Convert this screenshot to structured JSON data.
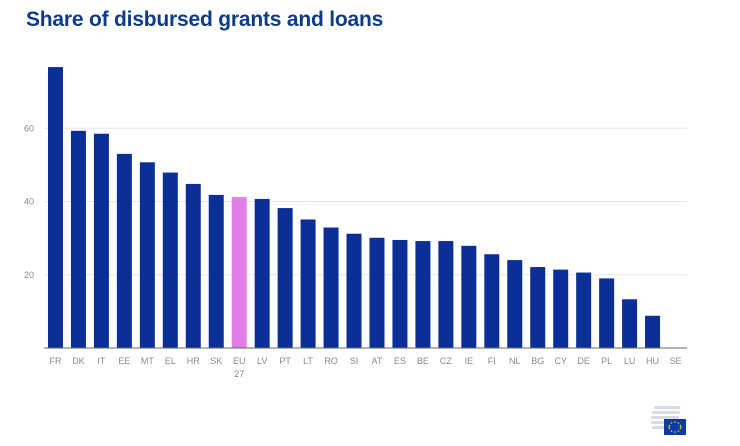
{
  "chart_data": {
    "type": "bar",
    "title": "Share of disbursed grants and loans",
    "categories": [
      "FR",
      "DK",
      "IT",
      "EE",
      "MT",
      "EL",
      "HR",
      "SK",
      "EU 27",
      "LV",
      "PT",
      "LT",
      "RO",
      "SI",
      "AT",
      "ES",
      "BE",
      "CZ",
      "IE",
      "FI",
      "NL",
      "BG",
      "CY",
      "DE",
      "PL",
      "LU",
      "HU",
      "SE"
    ],
    "category_label_lines": [
      [
        "FR"
      ],
      [
        "DK"
      ],
      [
        "IT"
      ],
      [
        "EE"
      ],
      [
        "MT"
      ],
      [
        "EL"
      ],
      [
        "HR"
      ],
      [
        "SK"
      ],
      [
        "EU",
        "27"
      ],
      [
        "LV"
      ],
      [
        "PT"
      ],
      [
        "LT"
      ],
      [
        "RO"
      ],
      [
        "SI"
      ],
      [
        "AT"
      ],
      [
        "ES"
      ],
      [
        "BE"
      ],
      [
        "CZ"
      ],
      [
        "IE"
      ],
      [
        "FI"
      ],
      [
        "NL"
      ],
      [
        "BG"
      ],
      [
        "CY"
      ],
      [
        "DE"
      ],
      [
        "PL"
      ],
      [
        "LU"
      ],
      [
        "HU"
      ],
      [
        "SE"
      ]
    ],
    "values": [
      76.7,
      59.3,
      58.5,
      53.0,
      50.7,
      47.9,
      44.8,
      41.8,
      41.2,
      40.7,
      38.2,
      35.1,
      32.9,
      31.2,
      30.1,
      29.5,
      29.2,
      29.2,
      27.9,
      25.6,
      24.0,
      22.1,
      21.4,
      20.6,
      19.0,
      13.3,
      8.8,
      0
    ],
    "highlight_category": "EU 27",
    "colors": {
      "bar": "#0b2f97",
      "highlight": "#e27ee6",
      "grid": "#e6e6e6",
      "axis": "#666666"
    },
    "ylim": [
      0,
      80
    ],
    "yticks": [
      20,
      40,
      60
    ],
    "xlabel": "",
    "ylabel": "",
    "grid": true
  },
  "footer": {
    "logo_icon": "eu-flag-logo-icon"
  }
}
